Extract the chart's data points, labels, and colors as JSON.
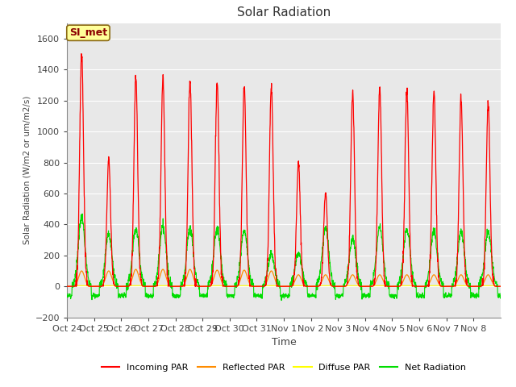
{
  "title": "Solar Radiation",
  "ylabel": "Solar Radiation (W/m2 or um/m2/s)",
  "xlabel": "Time",
  "annotation": "SI_met",
  "ylim": [
    -200,
    1700
  ],
  "yticks": [
    -200,
    0,
    200,
    400,
    600,
    800,
    1000,
    1200,
    1400,
    1600
  ],
  "line_colors": {
    "incoming": "#FF0000",
    "reflected": "#FF8C00",
    "diffuse": "#FFFF00",
    "net": "#00DD00"
  },
  "legend_labels": [
    "Incoming PAR",
    "Reflected PAR",
    "Diffuse PAR",
    "Net Radiation"
  ],
  "n_days": 16,
  "tick_labels": [
    "Oct 24",
    "Oct 25",
    "Oct 26",
    "Oct 27",
    "Oct 28",
    "Oct 29",
    "Oct 30",
    "Oct 31",
    "Nov 1",
    "Nov 2",
    "Nov 3",
    "Nov 4",
    "Nov 5",
    "Nov 6",
    "Nov 7",
    "Nov 8"
  ],
  "incoming_peaks": [
    1520,
    825,
    1350,
    1350,
    1335,
    1310,
    1300,
    1280,
    800,
    600,
    1250,
    1280,
    1270,
    1250,
    1220,
    1175
  ],
  "net_peaks": [
    450,
    340,
    375,
    385,
    380,
    375,
    365,
    210,
    220,
    380,
    310,
    385,
    370,
    360,
    355,
    355
  ],
  "reflected_peaks": [
    100,
    100,
    110,
    110,
    110,
    105,
    105,
    100,
    75,
    75,
    75,
    75,
    75,
    75,
    75,
    75
  ],
  "diffuse_peaks": [
    5,
    5,
    5,
    5,
    5,
    5,
    5,
    5,
    5,
    5,
    5,
    5,
    5,
    5,
    5,
    5
  ],
  "net_night_level": -60,
  "annotation_color": "#8B0000",
  "annotation_bg": "#FFFF99",
  "annotation_edge": "#8B6914"
}
